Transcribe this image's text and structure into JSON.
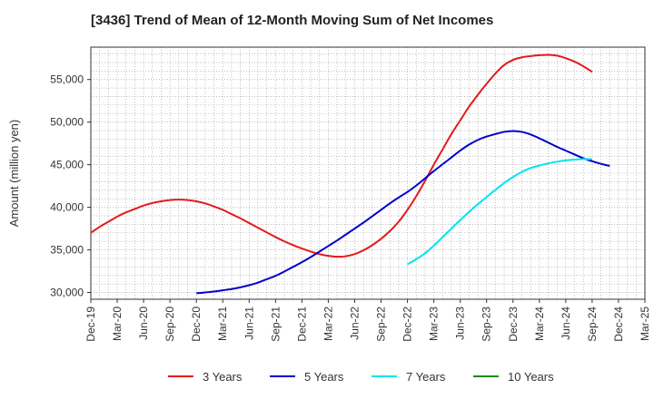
{
  "chart_data": {
    "type": "line",
    "title": "[3436]  Trend of Mean of 12-Month Moving Sum of Net Incomes",
    "ylabel": "Amount (million yen)",
    "xlabel": "",
    "x_ticks": [
      "Dec-19",
      "Mar-20",
      "Jun-20",
      "Sep-20",
      "Dec-20",
      "Mar-21",
      "Jun-21",
      "Sep-21",
      "Dec-21",
      "Mar-22",
      "Jun-22",
      "Sep-22",
      "Dec-22",
      "Mar-23",
      "Jun-23",
      "Sep-23",
      "Dec-23",
      "Mar-24",
      "Jun-24",
      "Sep-24",
      "Dec-24",
      "Mar-25"
    ],
    "y_ticks": [
      30000,
      35000,
      40000,
      45000,
      50000,
      55000
    ],
    "y_tick_labels": [
      "30,000",
      "35,000",
      "40,000",
      "45,000",
      "50,000",
      "55,000"
    ],
    "ylim": [
      29200,
      58800
    ],
    "grid": true,
    "legend_position": "bottom",
    "series": [
      {
        "name": "3 Years",
        "color": "#e31a1c",
        "start": 0,
        "values": [
          37000,
          37700,
          38300,
          38900,
          39400,
          39800,
          40200,
          40500,
          40700,
          40850,
          40900,
          40850,
          40700,
          40450,
          40100,
          39700,
          39200,
          38700,
          38150,
          37600,
          37050,
          36500,
          36000,
          35550,
          35150,
          34800,
          34500,
          34300,
          34200,
          34250,
          34500,
          34950,
          35550,
          36300,
          37200,
          38300,
          39700,
          41300,
          43100,
          45000,
          46800,
          48600,
          50200,
          51800,
          53200,
          54500,
          55700,
          56700,
          57300,
          57600,
          57750,
          57850,
          57900,
          57800,
          57500,
          57100,
          56550,
          55900
        ]
      },
      {
        "name": "5 Years",
        "color": "#0000cc",
        "start": 12,
        "values": [
          29900,
          30000,
          30100,
          30250,
          30400,
          30600,
          30850,
          31150,
          31550,
          31950,
          32450,
          33000,
          33550,
          34150,
          34800,
          35450,
          36100,
          36800,
          37500,
          38200,
          38950,
          39700,
          40450,
          41150,
          41800,
          42550,
          43400,
          44250,
          45050,
          45850,
          46650,
          47350,
          47900,
          48300,
          48600,
          48850,
          48950,
          48850,
          48550,
          48100,
          47600,
          47100,
          46650,
          46200,
          45750,
          45400,
          45100,
          44850
        ]
      },
      {
        "name": "7 Years",
        "color": "#00e5ee",
        "start": 36,
        "values": [
          33300,
          33900,
          34600,
          35500,
          36500,
          37500,
          38500,
          39450,
          40350,
          41200,
          42050,
          42850,
          43550,
          44150,
          44600,
          44900,
          45150,
          45350,
          45500,
          45600,
          45650,
          45650
        ]
      },
      {
        "name": "10 Years",
        "color": "#1a8a1a",
        "start": 0,
        "values": []
      }
    ]
  }
}
